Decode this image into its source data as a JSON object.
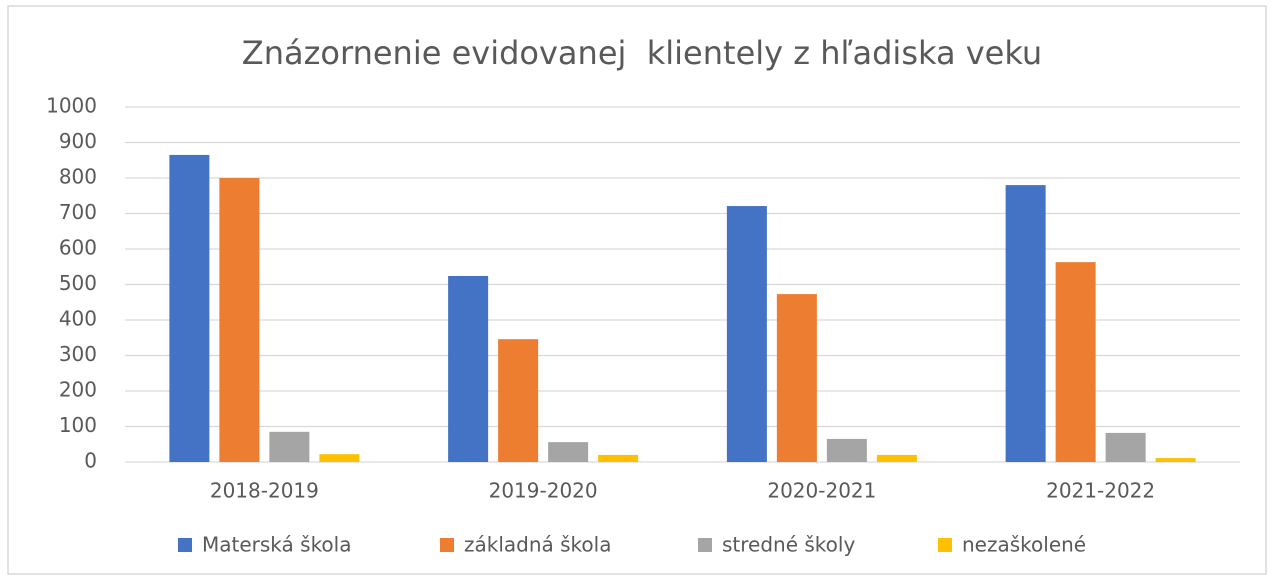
{
  "chart_data": {
    "type": "bar",
    "title": "Znázornenie evidovanej  klientely z hľadiska veku",
    "categories": [
      "2018-2019",
      "2019-2020",
      "2020-2021",
      "2021-2022"
    ],
    "series": [
      {
        "name": "Materská škola",
        "color": "#4472c4",
        "values": [
          865,
          524,
          721,
          780
        ]
      },
      {
        "name": "základná škola",
        "color": "#ed7d31",
        "values": [
          800,
          346,
          473,
          563
        ]
      },
      {
        "name": "stredné školy",
        "color": "#a5a5a5",
        "values": [
          85,
          56,
          65,
          82
        ]
      },
      {
        "name": "nezaškolené",
        "color": "#ffc000",
        "values": [
          22,
          20,
          20,
          11
        ]
      }
    ],
    "ylim": [
      0,
      1000
    ],
    "yticks": [
      0,
      100,
      200,
      300,
      400,
      500,
      600,
      700,
      800,
      900,
      1000
    ],
    "grid": true,
    "legend": "bottom"
  }
}
